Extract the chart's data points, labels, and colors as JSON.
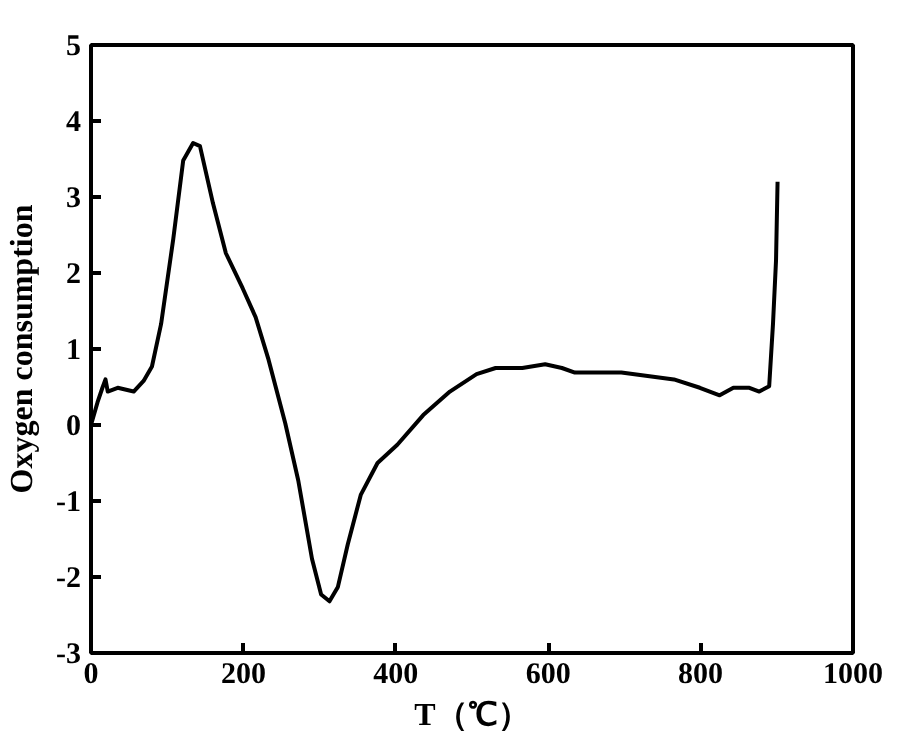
{
  "chart_data": {
    "type": "line",
    "xlabel": "T（℃）",
    "ylabel": "Oxygen consumption",
    "xlim": [
      0,
      1000
    ],
    "ylim": [
      -3,
      5
    ],
    "xticks": [
      0,
      200,
      400,
      600,
      800,
      1000
    ],
    "yticks": [
      -3,
      -2,
      -1,
      0,
      1,
      2,
      3,
      4,
      5
    ],
    "grid": false,
    "marker": "none",
    "line_style": "solid",
    "series": [
      {
        "color": "#000000",
        "x": [
          0,
          8.6,
          15,
          19,
          22,
          35,
          56,
          69,
          80,
          92,
          108,
          121,
          134,
          143,
          160,
          177,
          199,
          216,
          233,
          255,
          272,
          290,
          302,
          313,
          324,
          337,
          354,
          376,
          402,
          436,
          471,
          506,
          531,
          566,
          596,
          618,
          635,
          696,
          765,
          799,
          825,
          843,
          864,
          877,
          890,
          895,
          899,
          901
        ],
        "values": [
          0,
          0.3,
          0.49,
          0.6,
          0.44,
          0.49,
          0.44,
          0.58,
          0.77,
          1.33,
          2.45,
          3.48,
          3.71,
          3.67,
          2.92,
          2.26,
          1.8,
          1.42,
          0.86,
          0.02,
          -0.73,
          -1.76,
          -2.23,
          -2.32,
          -2.13,
          -1.57,
          -0.92,
          -0.5,
          -0.26,
          0.13,
          0.44,
          0.67,
          0.75,
          0.75,
          0.8,
          0.75,
          0.69,
          0.69,
          0.6,
          0.49,
          0.39,
          0.49,
          0.49,
          0.44,
          0.51,
          1.33,
          2.17,
          3.2
        ]
      }
    ]
  }
}
